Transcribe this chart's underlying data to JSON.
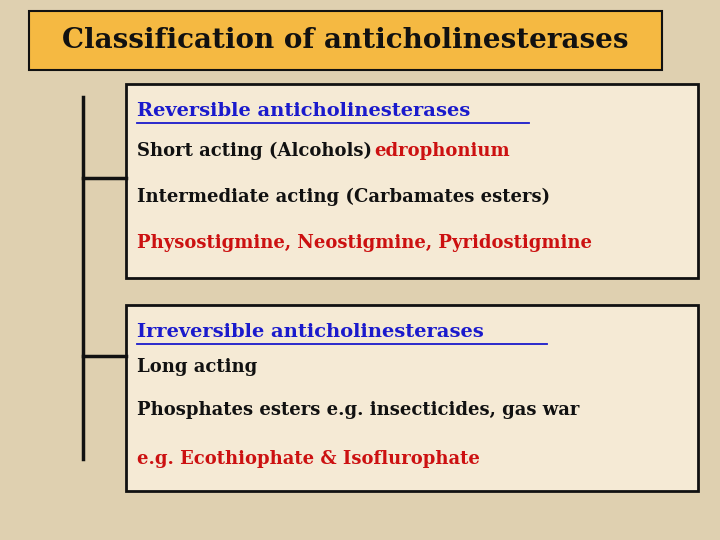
{
  "background_color": "#dfd0b0",
  "title": "Classification of anticholinesterases",
  "title_bg": "#f5b942",
  "title_color": "#111111",
  "box1_title": "Reversible anticholinesterases",
  "box1_line1_black": "Short acting (Alcohols) ",
  "box1_line1_red": "edrophonium",
  "box1_line2_black": "Intermediate acting (Carbamates esters)",
  "box1_line3_red": "Physostigmine, Neostigmine, Pyridostigmine",
  "box2_title": "Irreversible anticholinesterases",
  "box2_line1": "Long acting",
  "box2_line2": "Phosphates esters e.g. insecticides, gas war",
  "box2_line3_red": "e.g. Ecothiophate & Isoflurophate",
  "box_bg": "#f5ead5",
  "box_border": "#111111",
  "blue_color": "#1a1acc",
  "red_color": "#cc1111",
  "black_color": "#111111",
  "font_size_title": 20,
  "font_size_box_title": 14,
  "font_size_body": 13
}
